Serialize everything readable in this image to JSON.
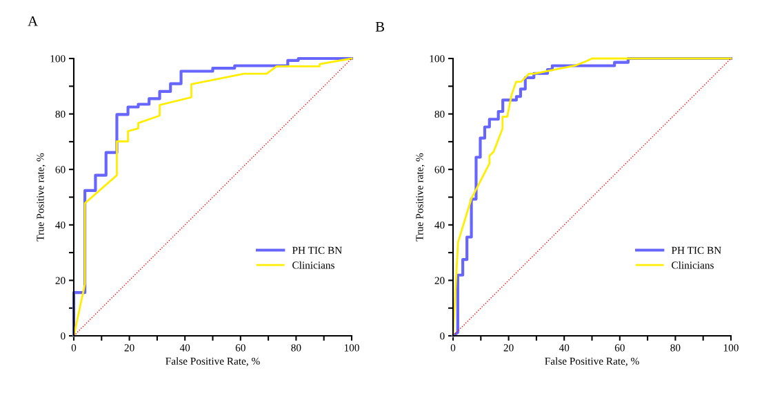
{
  "chart_data": [
    {
      "type": "line",
      "title": "A",
      "xlabel": "False Positive Rate, %",
      "ylabel": "True Positive rate, %",
      "xlim": [
        0,
        100
      ],
      "ylim": [
        0,
        100
      ],
      "xticks": [
        0,
        {
          "value": 10,
          "label": null
        },
        20,
        {
          "value": 30,
          "label": null
        },
        40,
        {
          "value": 50,
          "label": null
        },
        60,
        {
          "value": 70,
          "label": null
        },
        80,
        {
          "value": 90,
          "label": null
        },
        100
      ],
      "yticks": [
        0,
        {
          "value": 10,
          "label": null
        },
        20,
        {
          "value": 30,
          "label": null
        },
        40,
        {
          "value": 50,
          "label": null
        },
        60,
        {
          "value": 70,
          "label": null
        },
        80,
        {
          "value": 90,
          "label": null
        },
        100
      ],
      "grid": false,
      "legend": "lower right",
      "marker": "none",
      "series": [
        {
          "name": "PH TIC BN",
          "color": "#6666ff",
          "line_style": "solid",
          "x": [
            0,
            0,
            4,
            4,
            7.8,
            7.8,
            11.6,
            11.6,
            15.5,
            15.5,
            19.5,
            19.5,
            23.2,
            23.2,
            27.1,
            27.1,
            30.9,
            30.9,
            34.8,
            34.8,
            38.6,
            38.6,
            50,
            50,
            57.9,
            57.9,
            77,
            77,
            80.8,
            80.8,
            100
          ],
          "values": [
            0,
            15.6,
            15.6,
            52.4,
            52.4,
            57.9,
            57.9,
            66.1,
            66.1,
            79.8,
            79.8,
            82.5,
            82.5,
            83.5,
            83.5,
            85.5,
            85.5,
            88.1,
            88.1,
            90.9,
            90.9,
            95.4,
            95.4,
            96.5,
            96.5,
            97.4,
            97.4,
            99.3,
            99.3,
            100,
            100
          ]
        },
        {
          "name": "Clinicians",
          "color": "#ffee00",
          "line_style": "solid",
          "x": [
            0,
            4,
            4,
            15.5,
            15.5,
            19.5,
            19.5,
            23.2,
            23.2,
            30.9,
            30.9,
            42.3,
            42.3,
            61.3,
            69.4,
            73,
            88.5,
            88.5,
            100
          ],
          "values": [
            0,
            18.6,
            47.8,
            57.9,
            70.1,
            70.1,
            73.8,
            74.8,
            76.7,
            79.4,
            83.2,
            86,
            90.7,
            94.5,
            94.5,
            97.2,
            97.2,
            98,
            100
          ]
        },
        {
          "color": "#ff0000",
          "line_style": "dotted",
          "x": [
            0,
            100
          ],
          "values": [
            0,
            100
          ]
        }
      ]
    },
    {
      "type": "line",
      "title": "B",
      "xlabel": "False Positive Rate, %",
      "ylabel": "True Positive rate, %",
      "xlim": [
        0,
        100
      ],
      "ylim": [
        0,
        100
      ],
      "xticks": [
        0,
        {
          "value": 10,
          "label": null
        },
        20,
        {
          "value": 30,
          "label": null
        },
        40,
        {
          "value": 50,
          "label": null
        },
        60,
        {
          "value": 70,
          "label": null
        },
        80,
        {
          "value": 90,
          "label": null
        },
        100
      ],
      "yticks": [
        0,
        {
          "value": 10,
          "label": null
        },
        20,
        {
          "value": 30,
          "label": null
        },
        40,
        {
          "value": 50,
          "label": null
        },
        60,
        {
          "value": 70,
          "label": null
        },
        80,
        {
          "value": 90,
          "label": null
        },
        100
      ],
      "grid": false,
      "legend": "lower right",
      "marker": "none",
      "series": [
        {
          "name": "PH TIC BN",
          "color": "#6666ff",
          "line_style": "solid",
          "x": [
            0,
            1.7,
            1.7,
            3.5,
            3.5,
            5,
            5,
            6.6,
            6.6,
            8.3,
            8.3,
            9.8,
            9.8,
            11.4,
            11.4,
            13.1,
            13.1,
            16.3,
            16.3,
            17.9,
            17.9,
            22.8,
            22.8,
            24.3,
            24.3,
            26,
            26,
            29.1,
            29.1,
            34,
            34,
            35.7,
            35.7,
            58.1,
            58.1,
            63,
            63,
            100
          ],
          "values": [
            0,
            1.2,
            21.9,
            21.9,
            27.5,
            27.5,
            35.6,
            35.6,
            49.3,
            49.3,
            64.4,
            64.4,
            71.3,
            71.3,
            75.3,
            75.3,
            78.1,
            78.1,
            80.9,
            80.9,
            85,
            85,
            86.3,
            86.3,
            89,
            89,
            93.1,
            93.1,
            94.6,
            94.6,
            96,
            96,
            97.4,
            97.4,
            98.6,
            98.6,
            100,
            100
          ]
        },
        {
          "name": "Clinicians",
          "color": "#ffee00",
          "line_style": "solid",
          "x": [
            0,
            1.8,
            6.6,
            13.1,
            13.1,
            14.6,
            17.8,
            17.8,
            19.5,
            21.1,
            22.7,
            24.5,
            27.3,
            29.1,
            43.8,
            47.9,
            50,
            100
          ],
          "values": [
            0,
            33.8,
            49.5,
            62.1,
            64.9,
            66.4,
            74.7,
            79,
            79,
            87,
            91.6,
            91.6,
            94.5,
            94.5,
            97.4,
            99,
            100,
            100
          ]
        },
        {
          "color": "#ff0000",
          "line_style": "dotted",
          "x": [
            0,
            100
          ],
          "values": [
            0,
            100
          ]
        }
      ]
    }
  ]
}
